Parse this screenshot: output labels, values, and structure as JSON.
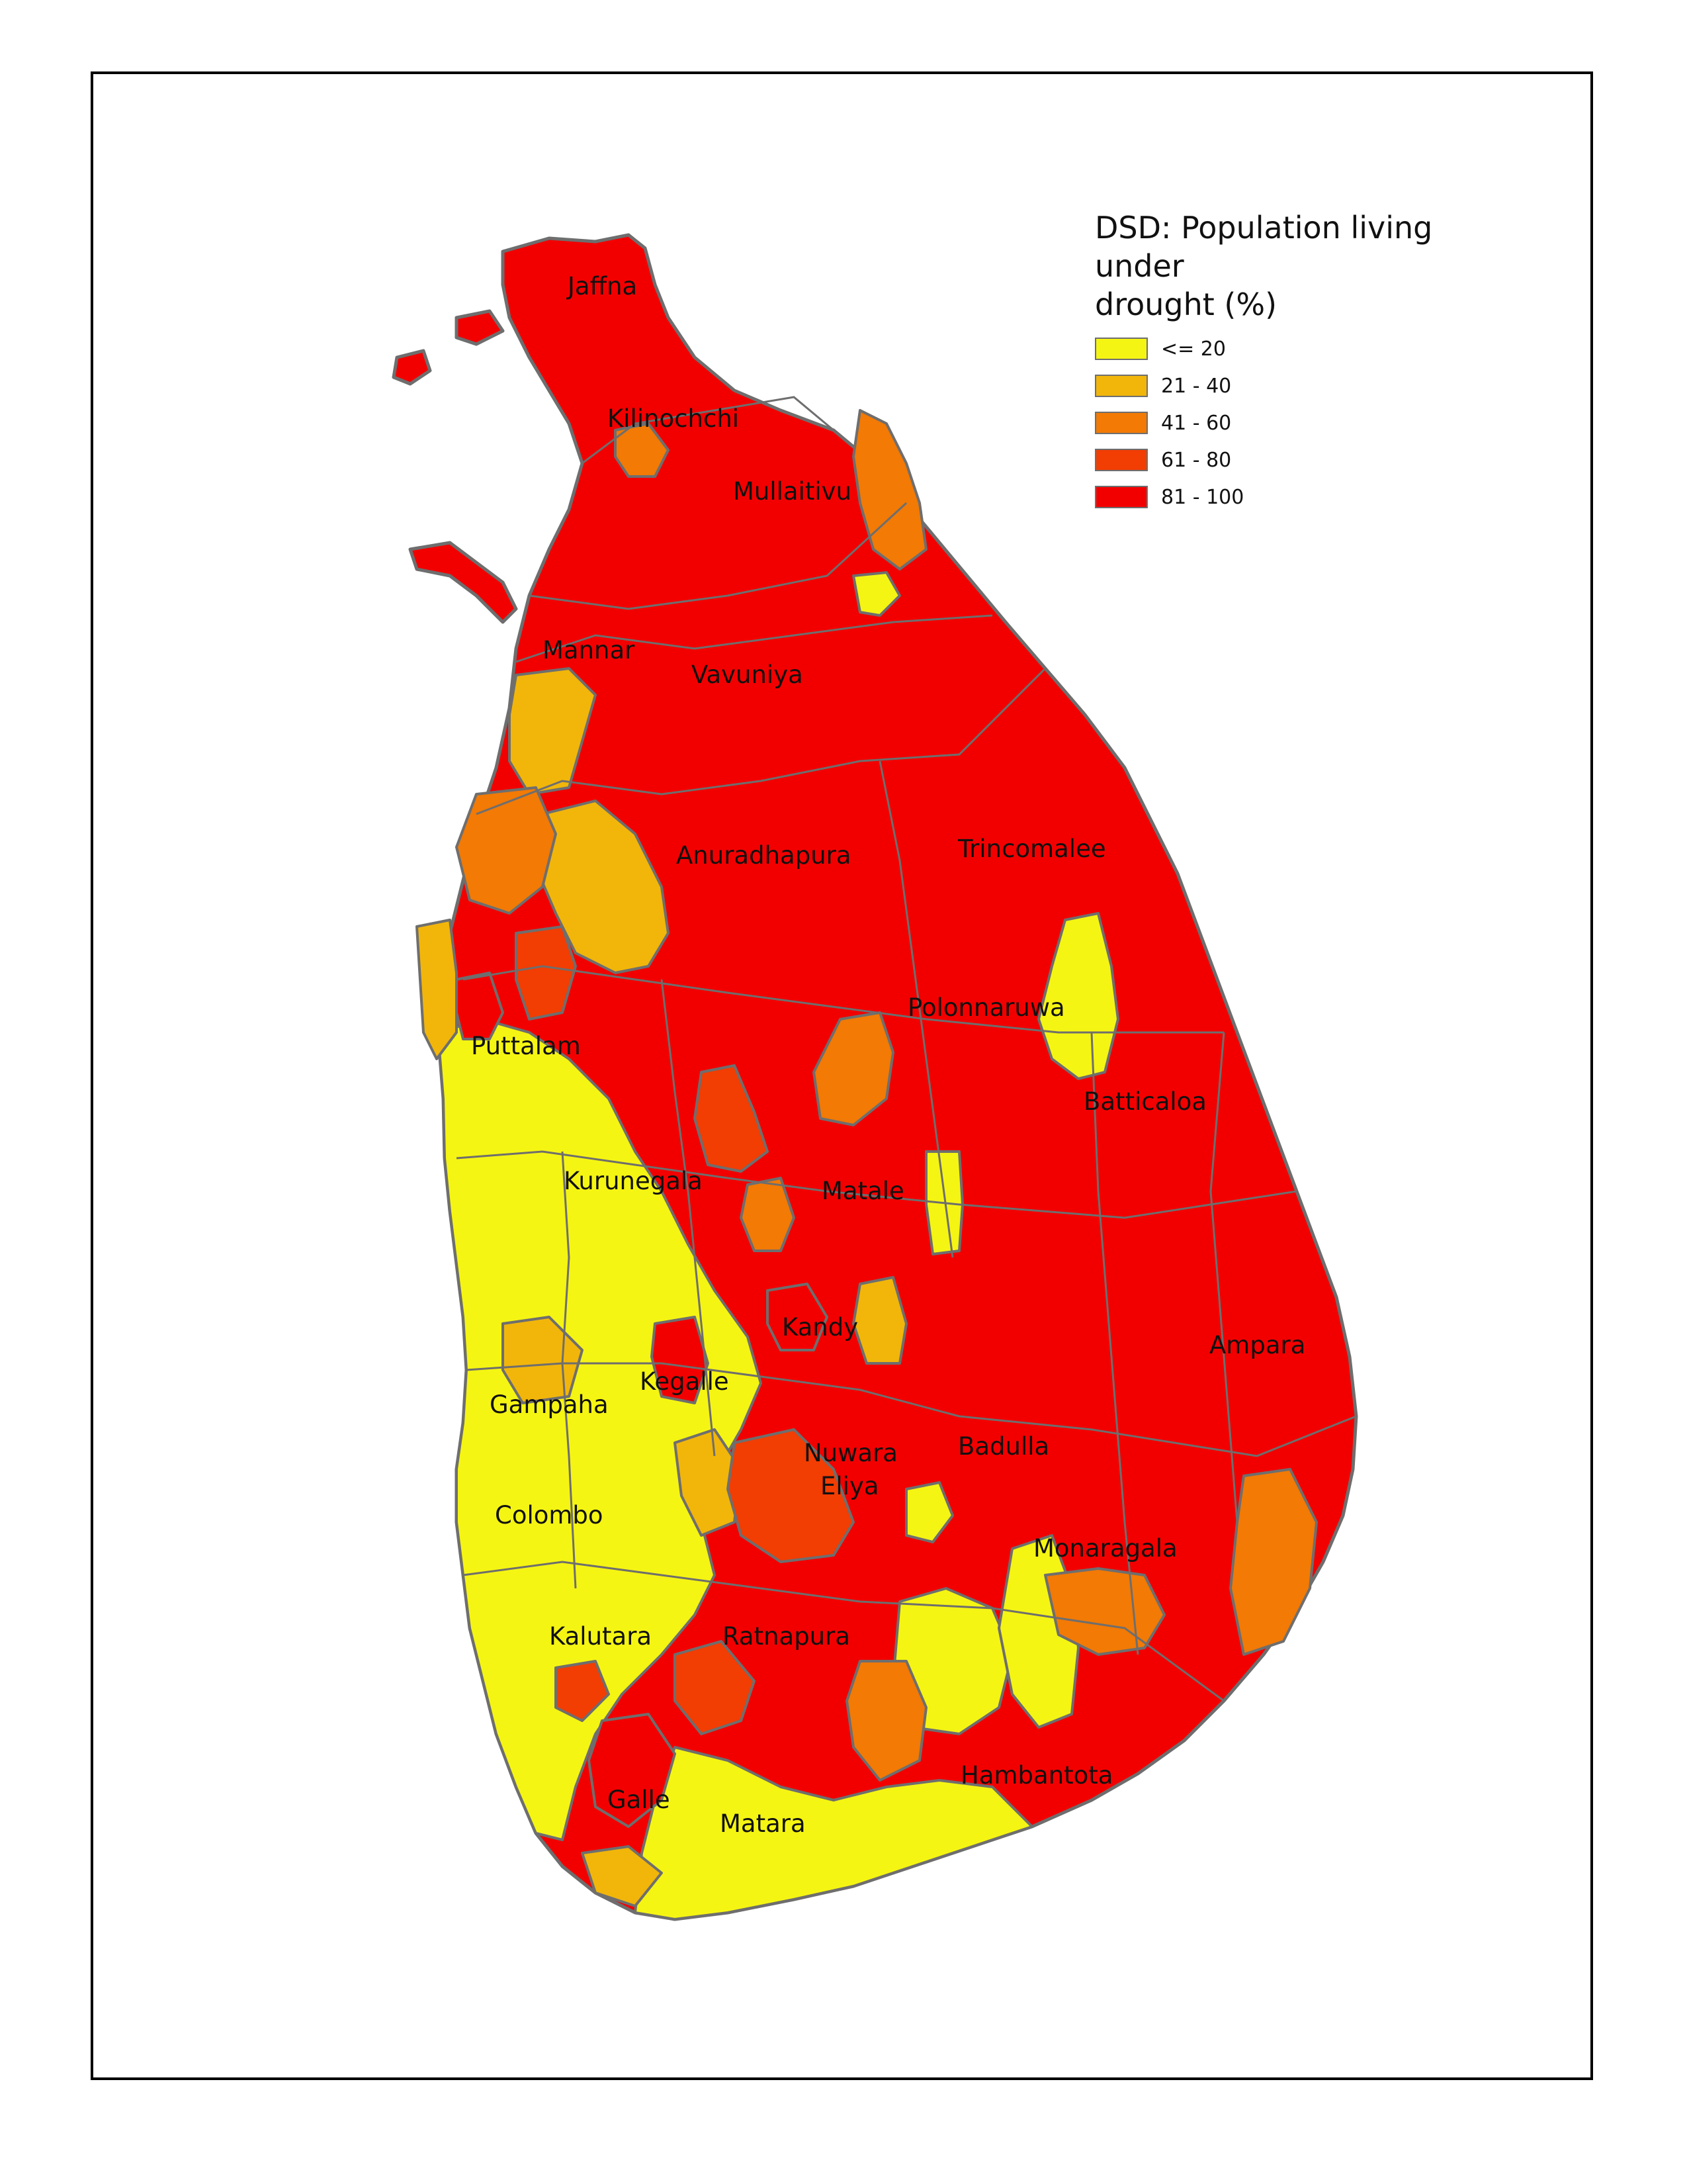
{
  "legend": {
    "title_line1": "DSD: Population living under",
    "title_line2": "drought (%)",
    "classes": [
      {
        "label": "<= 20",
        "color": "#f5f513"
      },
      {
        "label": "21 - 40",
        "color": "#f2b60a"
      },
      {
        "label": "41 - 60",
        "color": "#f27a05"
      },
      {
        "label": "61 - 80",
        "color": "#f23d03"
      },
      {
        "label": "81 - 100",
        "color": "#f20000"
      }
    ]
  },
  "boundary_color": "#6e6e6e",
  "districts": [
    {
      "name": "Jaffna"
    },
    {
      "name": "Kilinochchi"
    },
    {
      "name": "Mullaitivu"
    },
    {
      "name": "Mannar"
    },
    {
      "name": "Vavuniya"
    },
    {
      "name": "Anuradhapura"
    },
    {
      "name": "Trincomalee"
    },
    {
      "name": "Polonnaruwa"
    },
    {
      "name": "Puttalam"
    },
    {
      "name": "Batticaloa"
    },
    {
      "name": "Kurunegala"
    },
    {
      "name": "Matale"
    },
    {
      "name": "Kandy"
    },
    {
      "name": "Ampara"
    },
    {
      "name": "Kegalle"
    },
    {
      "name": "Gampaha"
    },
    {
      "name": "Nuwara Eliya"
    },
    {
      "name": "Badulla"
    },
    {
      "name": "Colombo"
    },
    {
      "name": "Monaragala"
    },
    {
      "name": "Kalutara"
    },
    {
      "name": "Ratnapura"
    },
    {
      "name": "Hambantota"
    },
    {
      "name": "Galle"
    },
    {
      "name": "Matara"
    }
  ]
}
